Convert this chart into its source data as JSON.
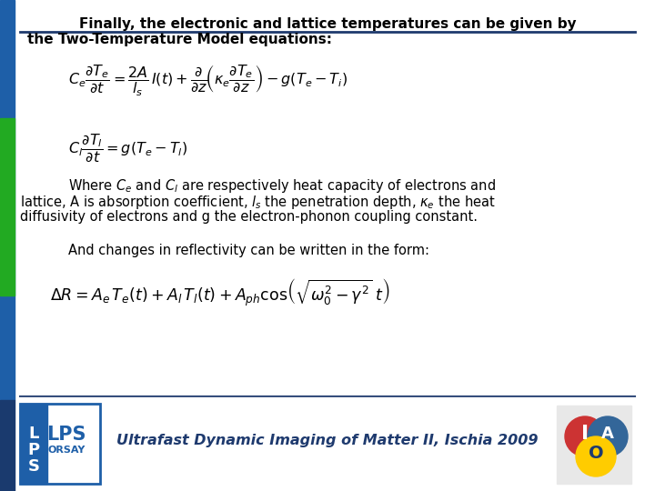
{
  "bg_color": "#ffffff",
  "left_bar_color_blue": "#1e5fa8",
  "left_bar_color_green": "#22aa22",
  "left_bar_color_dark": "#1a3a6e",
  "title_line1": "Finally, the electronic and lattice temperatures can be given by",
  "title_line2": "the Two-Temperature Model equations:",
  "desc_line1": "Where $C_e$ and $C_l$ are respectively heat capacity of electrons and",
  "desc_line2": "lattice, A is absorption coefficient, $l_s$ the penetration depth, $\\kappa_e$ the heat",
  "desc_line3": "diffusivity of electrons and g the electron-phonon coupling constant.",
  "eq3_label": "And changes in reflectivity can be written in the form:",
  "footer_text": "Ultrafast Dynamic Imaging of Matter II, Ischia 2009",
  "title_underline_color": "#1e3a6e",
  "footer_line_color": "#1e3a6e",
  "text_color": "#000000",
  "title_color": "#000000"
}
